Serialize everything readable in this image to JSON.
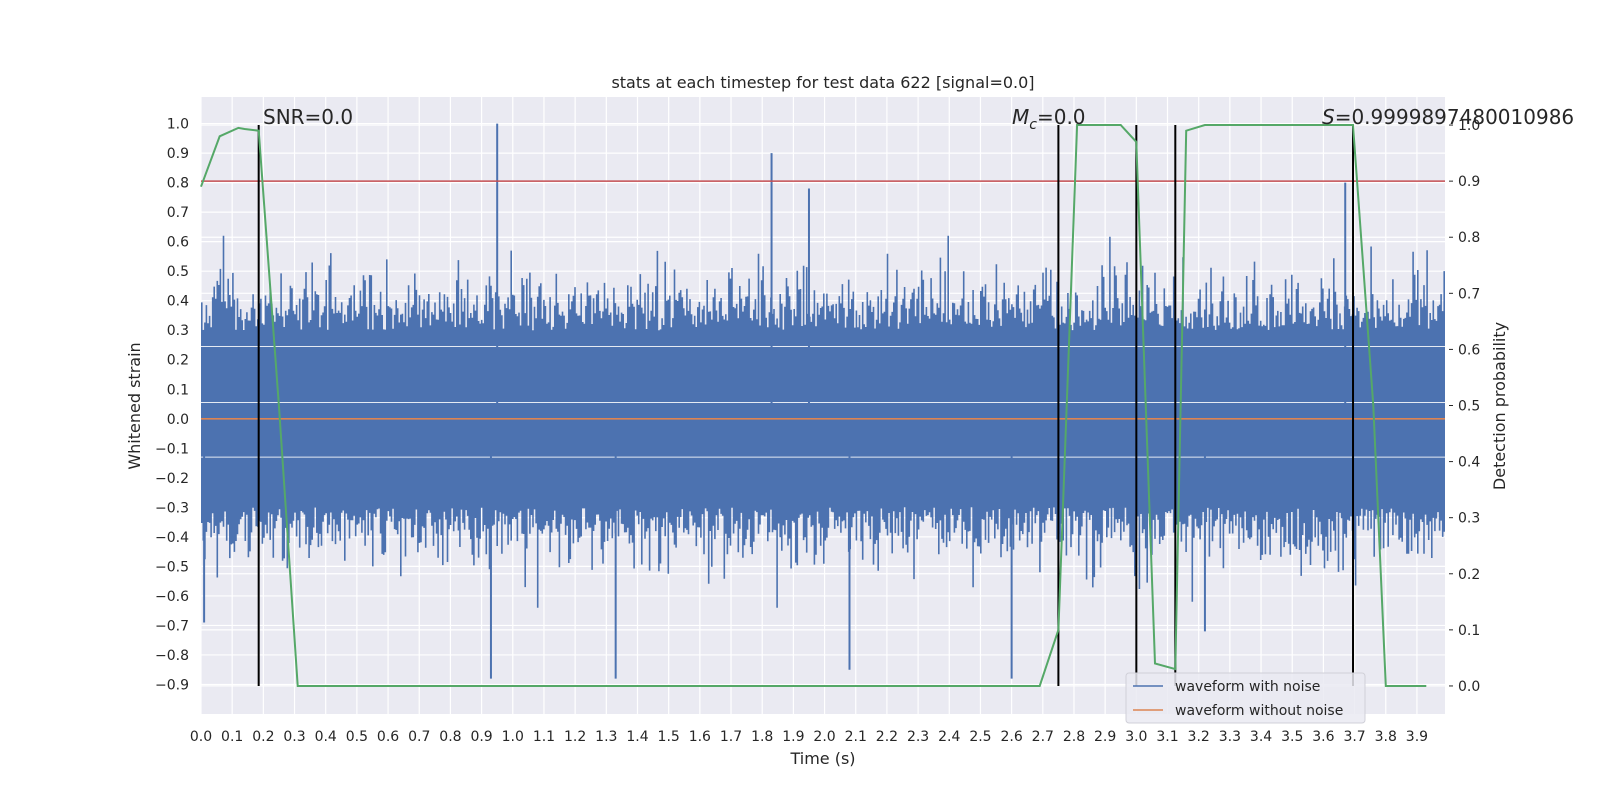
{
  "chart_data": {
    "type": "line",
    "title": "stats at each timestep for test data 622 [signal=0.0]",
    "xlabel": "Time (s)",
    "ylabel": "Whitened strain",
    "y2label": "Detection probability",
    "xlim": [
      0.0,
      3.99
    ],
    "ylim": [
      -1.0,
      1.09
    ],
    "y2lim": [
      -0.05,
      1.05
    ],
    "x_ticks": [
      "0.0",
      "0.1",
      "0.2",
      "0.3",
      "0.4",
      "0.5",
      "0.6",
      "0.7",
      "0.8",
      "0.9",
      "1.0",
      "1.1",
      "1.2",
      "1.3",
      "1.4",
      "1.5",
      "1.6",
      "1.7",
      "1.8",
      "1.9",
      "2.0",
      "2.1",
      "2.2",
      "2.3",
      "2.4",
      "2.5",
      "2.6",
      "2.7",
      "2.8",
      "2.9",
      "3.0",
      "3.1",
      "3.2",
      "3.3",
      "3.4",
      "3.5",
      "3.6",
      "3.7",
      "3.8",
      "3.9"
    ],
    "y_ticks": [
      "1.0",
      "0.9",
      "0.8",
      "0.7",
      "0.6",
      "0.5",
      "0.4",
      "0.3",
      "0.2",
      "0.1",
      "0.0",
      "−0.1",
      "−0.2",
      "−0.3",
      "−0.4",
      "−0.5",
      "−0.6",
      "−0.7",
      "−0.8",
      "−0.9"
    ],
    "y_tick_values": [
      1.0,
      0.9,
      0.8,
      0.7,
      0.6,
      0.5,
      0.4,
      0.3,
      0.2,
      0.1,
      0.0,
      -0.1,
      -0.2,
      -0.3,
      -0.4,
      -0.5,
      -0.6,
      -0.7,
      -0.8,
      -0.9
    ],
    "y2_ticks": [
      "1.0",
      "0.9",
      "0.8",
      "0.7",
      "0.6",
      "0.5",
      "0.4",
      "0.3",
      "0.2",
      "0.1",
      "0.0"
    ],
    "y2_tick_values": [
      1.0,
      0.9,
      0.8,
      0.7,
      0.6,
      0.5,
      0.4,
      0.3,
      0.2,
      0.1,
      0.0
    ],
    "grid": true,
    "legend_position": "lower-right",
    "annotations": {
      "snr": "SNR=0.0",
      "mc_symbol": "M",
      "mc_sub": "c",
      "mc_value": "=0.0",
      "s_symbol": "S",
      "s_value": "=0.9999897480010986"
    },
    "threshold": {
      "value": 0.9,
      "axis": "y2",
      "color": "#c44e52"
    },
    "vlines": [
      0.185,
      2.75,
      3.0,
      3.125,
      3.695
    ],
    "series": [
      {
        "name": "waveform with noise",
        "axis": "y",
        "color": "#4c72b0",
        "envelope_samples": 800,
        "peaks": [
          {
            "x": 0.95,
            "y": 1.0
          },
          {
            "x": 1.83,
            "y": 0.9
          },
          {
            "x": 1.95,
            "y": 0.78
          },
          {
            "x": 3.67,
            "y": 0.8
          },
          {
            "x": 0.93,
            "y": -0.88
          },
          {
            "x": 1.33,
            "y": -0.88
          },
          {
            "x": 2.6,
            "y": -0.88
          },
          {
            "x": 2.08,
            "y": -0.85
          },
          {
            "x": 0.01,
            "y": -0.69
          },
          {
            "x": 3.22,
            "y": -0.72
          }
        ]
      },
      {
        "name": "waveform without noise",
        "axis": "y",
        "color": "#dd8452",
        "x": [
          0.0,
          3.99
        ],
        "y": [
          0.0,
          0.0
        ]
      },
      {
        "name": "Detection probability",
        "axis": "y2",
        "color": "#55a868",
        "x": [
          0.0,
          0.06,
          0.12,
          0.14,
          0.185,
          0.25,
          0.31,
          0.37,
          0.5,
          1.0,
          1.5,
          2.0,
          2.5,
          2.69,
          2.75,
          2.81,
          2.85,
          2.95,
          3.0,
          3.06,
          3.125,
          3.16,
          3.22,
          3.3,
          3.6,
          3.695,
          3.76,
          3.8,
          3.86,
          3.93
        ],
        "y": [
          0.89,
          0.98,
          0.995,
          0.993,
          0.99,
          0.5,
          0.0,
          0.0,
          0.0,
          0.0,
          0.0,
          0.0,
          0.0,
          0.0,
          0.1,
          1.0,
          1.0,
          1.0,
          0.97,
          0.04,
          0.03,
          0.99,
          1.0,
          1.0,
          1.0,
          1.0,
          0.5,
          0.0,
          0.0,
          0.0
        ]
      }
    ]
  }
}
